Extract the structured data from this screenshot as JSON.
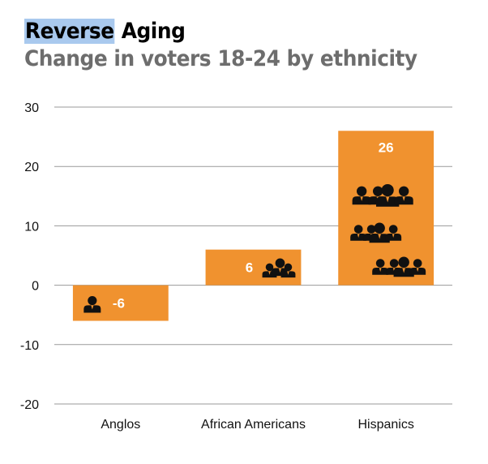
{
  "title": {
    "highlight": "Reverse",
    "rest": " Aging",
    "subtitle": "Change in voters 18-24 by ethnicity"
  },
  "chart_data": {
    "type": "bar",
    "title": "Reverse Aging",
    "subtitle": "Change in voters 18-24 by ethnicity",
    "categories": [
      "Anglos",
      "African Americans",
      "Hispanics"
    ],
    "values": [
      -6,
      6,
      26
    ],
    "data_labels": [
      "-6",
      "6",
      "26"
    ],
    "xlabel": "",
    "ylabel": "",
    "ylim": [
      -20,
      30
    ],
    "yticks": [
      30,
      20,
      10,
      0,
      -10,
      -20
    ],
    "ytick_labels": [
      "30",
      "20",
      "10",
      "0",
      "-10",
      "-20"
    ],
    "grid": true,
    "bar_color": "#f0922f",
    "icon": "people-icon"
  }
}
